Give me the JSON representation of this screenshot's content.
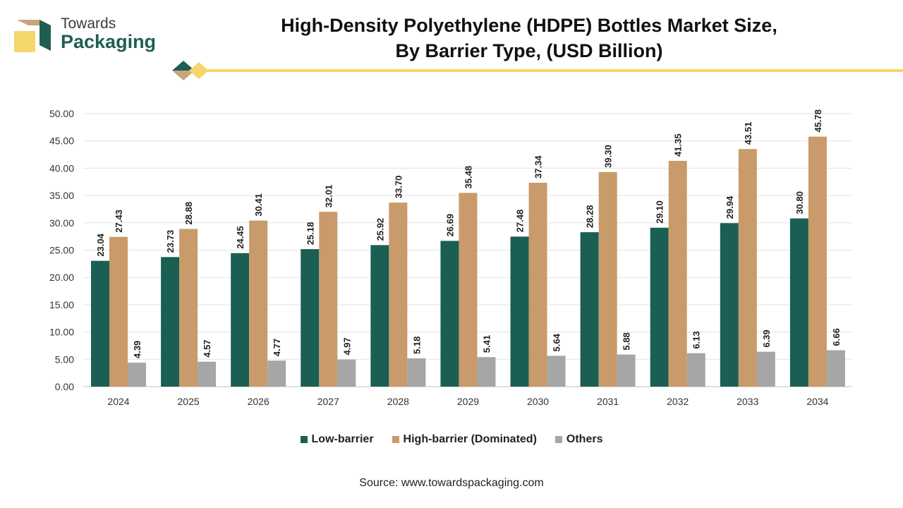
{
  "brand": {
    "line1": "Towards",
    "line2": "Packaging"
  },
  "header": {
    "title_line1": "High-Density Polyethylene (HDPE) Bottles Market Size,",
    "title_line2": "By Barrier Type, (USD Billion)"
  },
  "colors": {
    "low": "#1b5e54",
    "high": "#c99a6a",
    "others": "#a6a6a6",
    "accent_yellow": "#f5d66b",
    "logo_brown": "#c8a57b"
  },
  "chart_data": {
    "type": "bar",
    "categories": [
      "2024",
      "2025",
      "2026",
      "2027",
      "2028",
      "2029",
      "2030",
      "2031",
      "2032",
      "2033",
      "2034"
    ],
    "series": [
      {
        "name": "Low-barrier",
        "values": [
          23.04,
          23.73,
          24.45,
          25.18,
          25.92,
          26.69,
          27.48,
          28.28,
          29.1,
          29.94,
          30.8
        ]
      },
      {
        "name": "High-barrier (Dominated)",
        "values": [
          27.43,
          28.88,
          30.41,
          32.01,
          33.7,
          35.48,
          37.34,
          39.3,
          41.35,
          43.51,
          45.78
        ]
      },
      {
        "name": "Others",
        "values": [
          4.39,
          4.57,
          4.77,
          4.97,
          5.18,
          5.41,
          5.64,
          5.88,
          6.13,
          6.39,
          6.66
        ]
      }
    ],
    "yticks": [
      "0.00",
      "5.00",
      "10.00",
      "15.00",
      "20.00",
      "25.00",
      "30.00",
      "35.00",
      "40.00",
      "45.00",
      "50.00"
    ],
    "ylim": [
      0,
      50
    ],
    "grid": true,
    "legend_position": "bottom"
  },
  "footer": {
    "source": "Source: www.towardspackaging.com"
  }
}
